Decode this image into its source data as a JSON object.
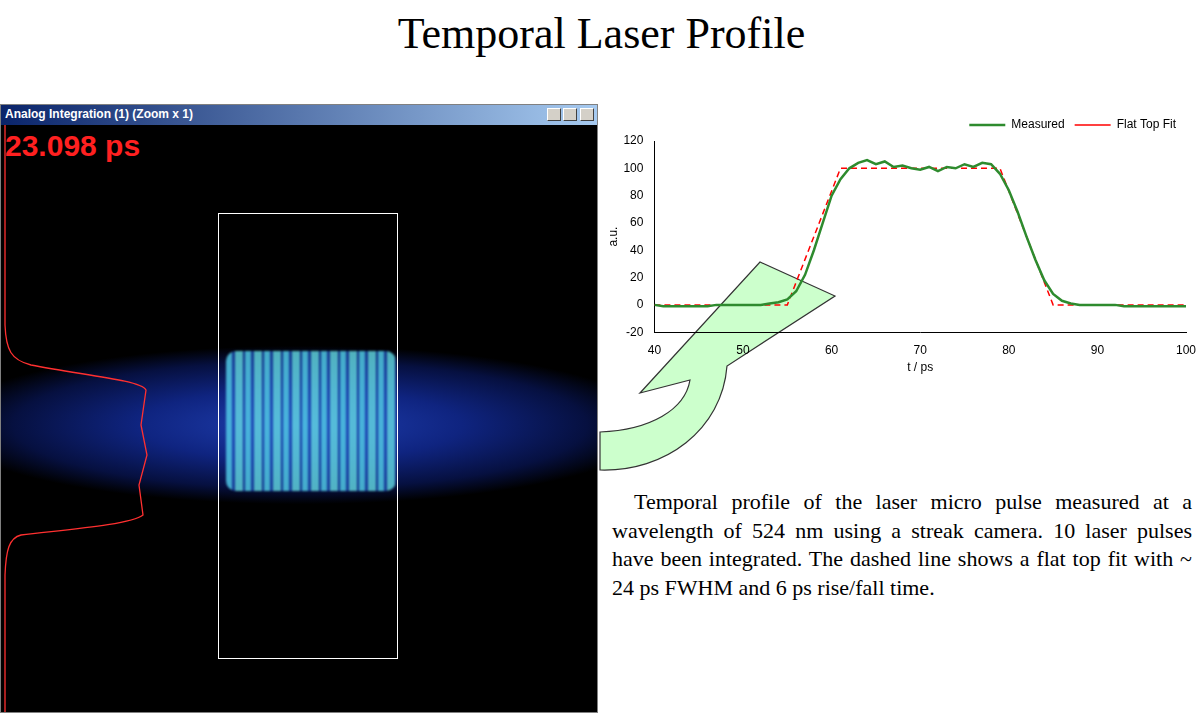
{
  "title": "Temporal Laser Profile",
  "screenshot": {
    "window_title": "Analog Integration (1) (Zoom x 1)",
    "readout": "23.098 ps"
  },
  "caption": "Temporal profile of the laser micro pulse measured at a wavelength of 524 nm using a streak camera. 10 laser pulses have been integrated. The dashed line shows a flat top fit with ~ 24 ps FWHM and 6 ps rise/fall time.",
  "chart_data": {
    "type": "line",
    "x_label": "t / ps",
    "y_label": "a.u.",
    "xlim": [
      40,
      100
    ],
    "xticks": [
      40,
      50,
      60,
      70,
      80,
      90,
      100
    ],
    "ylim": [
      -20,
      120
    ],
    "yticks": [
      -20,
      0,
      20,
      40,
      60,
      80,
      100,
      120
    ],
    "grid": false,
    "legend": "upper right",
    "series": [
      {
        "name": "Measured",
        "color": "#2e8b2e",
        "line_style": "solid",
        "x": [
          40,
          41,
          42,
          43,
          44,
          45,
          46,
          47,
          48,
          49,
          50,
          51,
          52,
          53,
          54,
          55,
          56,
          57,
          58,
          59,
          60,
          61,
          62,
          63,
          64,
          65,
          66,
          67,
          68,
          69,
          70,
          71,
          72,
          73,
          74,
          75,
          76,
          77,
          78,
          79,
          80,
          81,
          82,
          83,
          84,
          85,
          86,
          87,
          88,
          89,
          90,
          91,
          92,
          93,
          94,
          95,
          96,
          97,
          98,
          99,
          100
        ],
        "values": [
          0,
          -1,
          -1,
          -1,
          -1,
          -1,
          -1,
          0,
          0,
          0,
          0,
          0,
          0,
          1,
          2,
          4,
          10,
          22,
          40,
          60,
          80,
          92,
          100,
          104,
          106,
          103,
          105,
          101,
          102,
          100,
          99,
          101,
          98,
          101,
          100,
          103,
          101,
          104,
          103,
          96,
          84,
          68,
          50,
          33,
          18,
          8,
          3,
          1,
          0,
          0,
          0,
          0,
          0,
          -1,
          -1,
          -1,
          -1,
          -1,
          -1,
          -1,
          -1
        ]
      },
      {
        "name": "Flat Top Fit",
        "color": "#ff0000",
        "line_style": "dashed",
        "x": [
          40,
          55,
          61,
          79,
          85,
          100
        ],
        "values": [
          0,
          0,
          100,
          100,
          0,
          0
        ]
      }
    ]
  }
}
